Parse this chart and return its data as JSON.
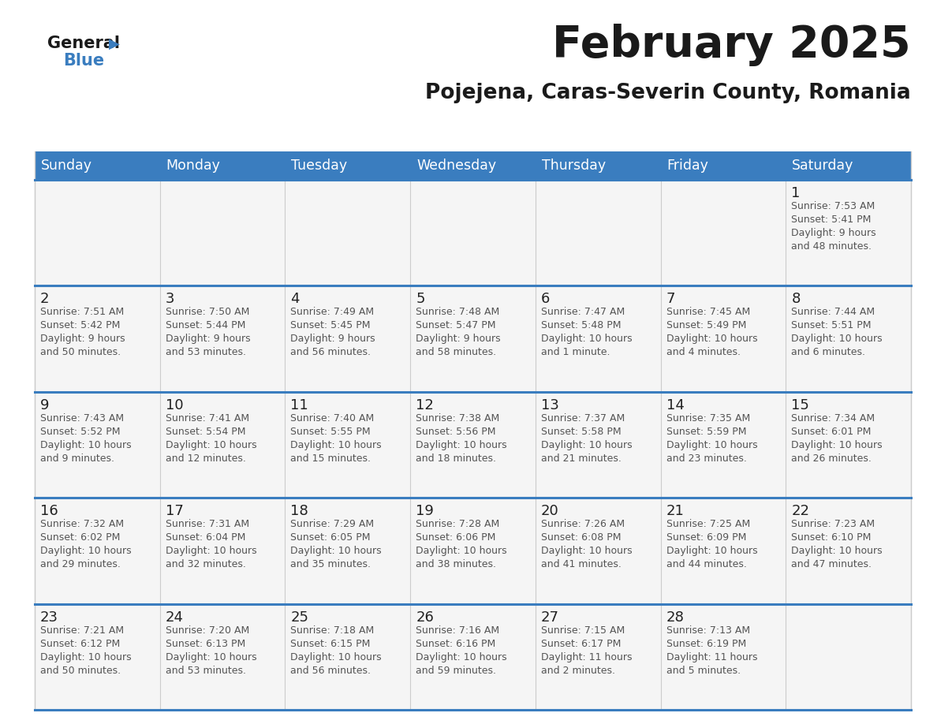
{
  "title": "February 2025",
  "subtitle": "Pojejena, Caras-Severin County, Romania",
  "days_of_week": [
    "Sunday",
    "Monday",
    "Tuesday",
    "Wednesday",
    "Thursday",
    "Friday",
    "Saturday"
  ],
  "header_bg": "#3a7dbf",
  "header_text": "#ffffff",
  "cell_bg": "#ffffff",
  "divider_color": "#3a7dbf",
  "grid_color": "#cccccc",
  "title_color": "#1a1a1a",
  "info_text_color": "#555555",
  "calendar_data": [
    [
      null,
      null,
      null,
      null,
      null,
      null,
      {
        "day": "1",
        "sunrise": "7:53 AM",
        "sunset": "5:41 PM",
        "daylight_line1": "Daylight: 9 hours",
        "daylight_line2": "and 48 minutes."
      }
    ],
    [
      {
        "day": "2",
        "sunrise": "7:51 AM",
        "sunset": "5:42 PM",
        "daylight_line1": "Daylight: 9 hours",
        "daylight_line2": "and 50 minutes."
      },
      {
        "day": "3",
        "sunrise": "7:50 AM",
        "sunset": "5:44 PM",
        "daylight_line1": "Daylight: 9 hours",
        "daylight_line2": "and 53 minutes."
      },
      {
        "day": "4",
        "sunrise": "7:49 AM",
        "sunset": "5:45 PM",
        "daylight_line1": "Daylight: 9 hours",
        "daylight_line2": "and 56 minutes."
      },
      {
        "day": "5",
        "sunrise": "7:48 AM",
        "sunset": "5:47 PM",
        "daylight_line1": "Daylight: 9 hours",
        "daylight_line2": "and 58 minutes."
      },
      {
        "day": "6",
        "sunrise": "7:47 AM",
        "sunset": "5:48 PM",
        "daylight_line1": "Daylight: 10 hours",
        "daylight_line2": "and 1 minute."
      },
      {
        "day": "7",
        "sunrise": "7:45 AM",
        "sunset": "5:49 PM",
        "daylight_line1": "Daylight: 10 hours",
        "daylight_line2": "and 4 minutes."
      },
      {
        "day": "8",
        "sunrise": "7:44 AM",
        "sunset": "5:51 PM",
        "daylight_line1": "Daylight: 10 hours",
        "daylight_line2": "and 6 minutes."
      }
    ],
    [
      {
        "day": "9",
        "sunrise": "7:43 AM",
        "sunset": "5:52 PM",
        "daylight_line1": "Daylight: 10 hours",
        "daylight_line2": "and 9 minutes."
      },
      {
        "day": "10",
        "sunrise": "7:41 AM",
        "sunset": "5:54 PM",
        "daylight_line1": "Daylight: 10 hours",
        "daylight_line2": "and 12 minutes."
      },
      {
        "day": "11",
        "sunrise": "7:40 AM",
        "sunset": "5:55 PM",
        "daylight_line1": "Daylight: 10 hours",
        "daylight_line2": "and 15 minutes."
      },
      {
        "day": "12",
        "sunrise": "7:38 AM",
        "sunset": "5:56 PM",
        "daylight_line1": "Daylight: 10 hours",
        "daylight_line2": "and 18 minutes."
      },
      {
        "day": "13",
        "sunrise": "7:37 AM",
        "sunset": "5:58 PM",
        "daylight_line1": "Daylight: 10 hours",
        "daylight_line2": "and 21 minutes."
      },
      {
        "day": "14",
        "sunrise": "7:35 AM",
        "sunset": "5:59 PM",
        "daylight_line1": "Daylight: 10 hours",
        "daylight_line2": "and 23 minutes."
      },
      {
        "day": "15",
        "sunrise": "7:34 AM",
        "sunset": "6:01 PM",
        "daylight_line1": "Daylight: 10 hours",
        "daylight_line2": "and 26 minutes."
      }
    ],
    [
      {
        "day": "16",
        "sunrise": "7:32 AM",
        "sunset": "6:02 PM",
        "daylight_line1": "Daylight: 10 hours",
        "daylight_line2": "and 29 minutes."
      },
      {
        "day": "17",
        "sunrise": "7:31 AM",
        "sunset": "6:04 PM",
        "daylight_line1": "Daylight: 10 hours",
        "daylight_line2": "and 32 minutes."
      },
      {
        "day": "18",
        "sunrise": "7:29 AM",
        "sunset": "6:05 PM",
        "daylight_line1": "Daylight: 10 hours",
        "daylight_line2": "and 35 minutes."
      },
      {
        "day": "19",
        "sunrise": "7:28 AM",
        "sunset": "6:06 PM",
        "daylight_line1": "Daylight: 10 hours",
        "daylight_line2": "and 38 minutes."
      },
      {
        "day": "20",
        "sunrise": "7:26 AM",
        "sunset": "6:08 PM",
        "daylight_line1": "Daylight: 10 hours",
        "daylight_line2": "and 41 minutes."
      },
      {
        "day": "21",
        "sunrise": "7:25 AM",
        "sunset": "6:09 PM",
        "daylight_line1": "Daylight: 10 hours",
        "daylight_line2": "and 44 minutes."
      },
      {
        "day": "22",
        "sunrise": "7:23 AM",
        "sunset": "6:10 PM",
        "daylight_line1": "Daylight: 10 hours",
        "daylight_line2": "and 47 minutes."
      }
    ],
    [
      {
        "day": "23",
        "sunrise": "7:21 AM",
        "sunset": "6:12 PM",
        "daylight_line1": "Daylight: 10 hours",
        "daylight_line2": "and 50 minutes."
      },
      {
        "day": "24",
        "sunrise": "7:20 AM",
        "sunset": "6:13 PM",
        "daylight_line1": "Daylight: 10 hours",
        "daylight_line2": "and 53 minutes."
      },
      {
        "day": "25",
        "sunrise": "7:18 AM",
        "sunset": "6:15 PM",
        "daylight_line1": "Daylight: 10 hours",
        "daylight_line2": "and 56 minutes."
      },
      {
        "day": "26",
        "sunrise": "7:16 AM",
        "sunset": "6:16 PM",
        "daylight_line1": "Daylight: 10 hours",
        "daylight_line2": "and 59 minutes."
      },
      {
        "day": "27",
        "sunrise": "7:15 AM",
        "sunset": "6:17 PM",
        "daylight_line1": "Daylight: 11 hours",
        "daylight_line2": "and 2 minutes."
      },
      {
        "day": "28",
        "sunrise": "7:13 AM",
        "sunset": "6:19 PM",
        "daylight_line1": "Daylight: 11 hours",
        "daylight_line2": "and 5 minutes."
      },
      null
    ]
  ]
}
